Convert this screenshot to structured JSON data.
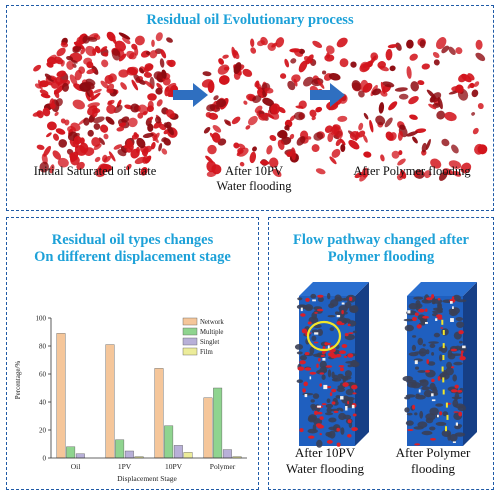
{
  "top": {
    "title": "Residual oil Evolutionary process",
    "stages": [
      {
        "caption": "Initial Saturated oil state"
      },
      {
        "caption": "After 10PV\nWater flooding"
      },
      {
        "caption": "After Polymer flooding"
      }
    ],
    "colors": {
      "oil": "#d2141c",
      "oil_dark": "#8e0a10",
      "arrow": "#2f6fc0"
    }
  },
  "left": {
    "title_line1": "Residual oil types changes",
    "title_line2": "On different displacement stage"
  },
  "chart_data": {
    "type": "bar",
    "categories": [
      "Oil",
      "1PV",
      "10PV",
      "Polymer"
    ],
    "series": [
      {
        "name": "Network",
        "values": [
          89,
          81,
          64,
          43
        ],
        "color": "#f5c69a"
      },
      {
        "name": "Multiple",
        "values": [
          8,
          13,
          23,
          50
        ],
        "color": "#8fd48f"
      },
      {
        "name": "Singlet",
        "values": [
          3,
          5,
          9,
          6
        ],
        "color": "#b8b0d8"
      },
      {
        "name": "Film",
        "values": [
          0,
          1,
          4,
          1
        ],
        "color": "#ecec9a"
      }
    ],
    "xlabel": "Displacement Stage",
    "ylabel": "Percentage/%",
    "ylim": [
      0,
      100
    ],
    "yticks": [
      0,
      20,
      40,
      60,
      80,
      100
    ],
    "legend_position": "top-right",
    "grid": false
  },
  "right": {
    "title_line1": "Flow pathway changed after",
    "title_line2": "Polymer flooding",
    "captions": [
      {
        "line1": "After 10PV",
        "line2": "Water flooding"
      },
      {
        "line1": "After Polymer",
        "line2": "flooding"
      }
    ],
    "colors": {
      "pore_blue": "#1f5fbf",
      "rock": "#3a3f55",
      "flow_red": "#d8202a",
      "highlight": "#f2e62a"
    }
  }
}
